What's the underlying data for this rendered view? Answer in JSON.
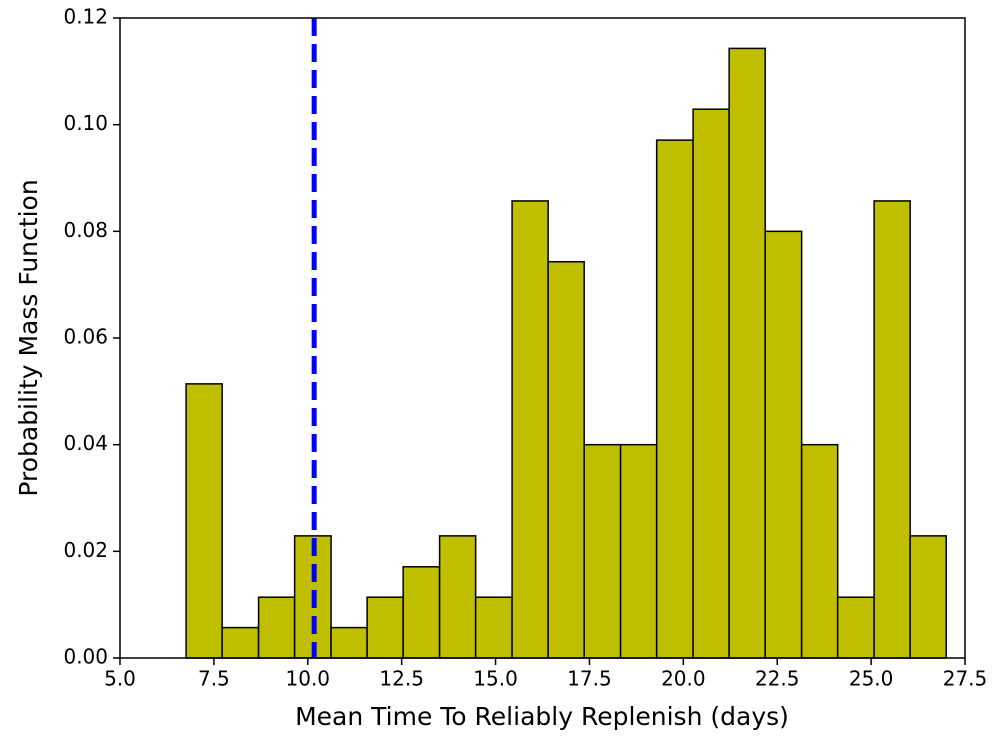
{
  "chart_data": {
    "type": "histogram",
    "x_label": "Mean Time To Reliably Replenish (days)",
    "y_label": "Probability Mass Function",
    "bins": [
      6.76,
      7.72,
      8.69,
      9.65,
      10.62,
      11.58,
      12.54,
      13.51,
      14.47,
      15.44,
      16.4,
      17.36,
      18.33,
      19.29,
      20.26,
      21.22,
      22.18,
      23.15,
      24.11,
      25.08,
      26.04,
      27.0
    ],
    "values": [
      0.0514,
      0.0057,
      0.0114,
      0.0229,
      0.0057,
      0.0114,
      0.0171,
      0.0229,
      0.0114,
      0.0857,
      0.0743,
      0.04,
      0.04,
      0.0971,
      0.1029,
      0.1143,
      0.08,
      0.04,
      0.0114,
      0.0857,
      0.0229
    ],
    "color": "#bfbf00",
    "edgecolor": "#000000",
    "vline": {
      "x": 10.17,
      "color": "#0000ff",
      "style": "dashed"
    },
    "xlim": [
      5.0,
      27.5
    ],
    "xticks": [
      {
        "value": 5,
        "label": "5.0"
      },
      {
        "value": 7.5,
        "label": "7.5"
      },
      {
        "value": 10,
        "label": "10.0"
      },
      {
        "value": 12.5,
        "label": "12.5"
      },
      {
        "value": 15,
        "label": "15.0"
      },
      {
        "value": 17.5,
        "label": "17.5"
      },
      {
        "value": 20,
        "label": "20.0"
      },
      {
        "value": 22.5,
        "label": "22.5"
      },
      {
        "value": 25,
        "label": "25.0"
      },
      {
        "value": 27.5,
        "label": "27.5"
      }
    ],
    "ylim": [
      0,
      0.12
    ],
    "yticks": [
      {
        "value": 0,
        "label": "0.00"
      },
      {
        "value": 0.02,
        "label": "0.02"
      },
      {
        "value": 0.04,
        "label": "0.04"
      },
      {
        "value": 0.06,
        "label": "0.06"
      },
      {
        "value": 0.08,
        "label": "0.08"
      },
      {
        "value": 0.1,
        "label": "0.10"
      },
      {
        "value": 0.12,
        "label": "0.12"
      }
    ],
    "grid": false
  }
}
